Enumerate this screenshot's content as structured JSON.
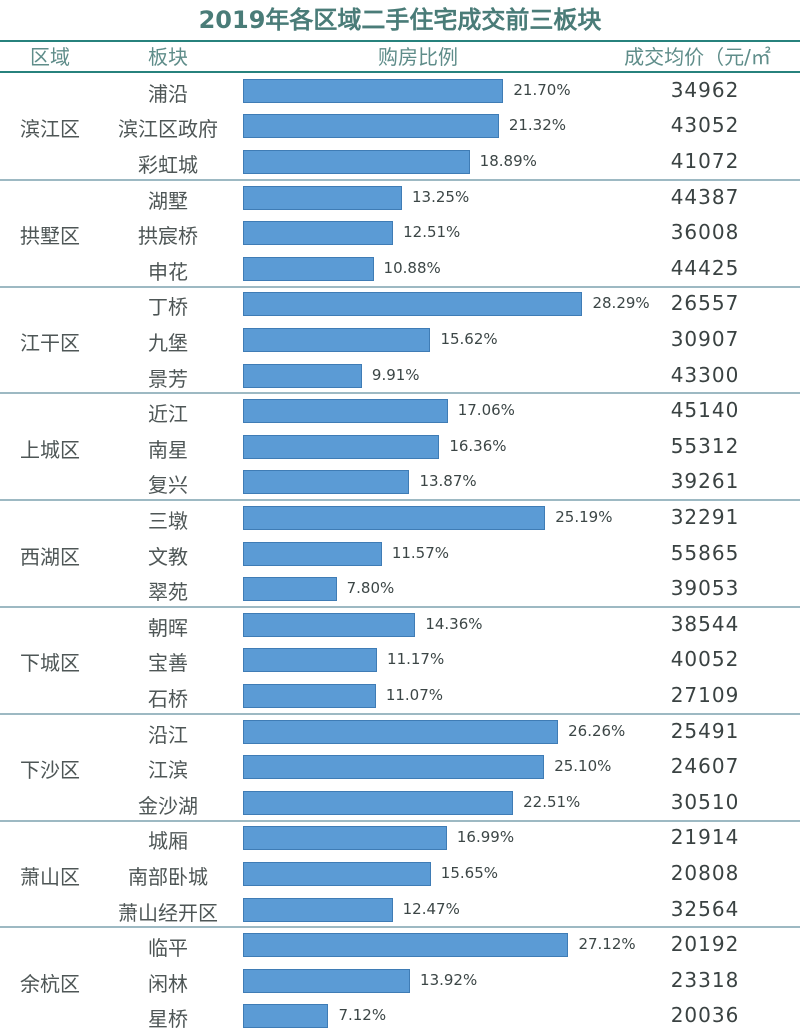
{
  "title": "2019年各区域二手住宅成交前三板块",
  "headers": {
    "district": "区域",
    "block": "板块",
    "ratio": "购房比例",
    "price": "成交均价（元/㎡"
  },
  "chart_data": {
    "type": "bar",
    "title": "2019年各区域二手住宅成交前三板块",
    "xlabel": "购房比例",
    "ylabel": "",
    "xlim": [
      0,
      32
    ],
    "groups": [
      {
        "district": "滨江区",
        "rows": [
          {
            "block": "浦沿",
            "ratio": 21.7,
            "label": "21.70%",
            "price": "34962"
          },
          {
            "block": "滨江区政府",
            "ratio": 21.32,
            "label": "21.32%",
            "price": "43052"
          },
          {
            "block": "彩虹城",
            "ratio": 18.89,
            "label": "18.89%",
            "price": "41072"
          }
        ]
      },
      {
        "district": "拱墅区",
        "rows": [
          {
            "block": "湖墅",
            "ratio": 13.25,
            "label": "13.25%",
            "price": "44387"
          },
          {
            "block": "拱宸桥",
            "ratio": 12.51,
            "label": "12.51%",
            "price": "36008"
          },
          {
            "block": "申花",
            "ratio": 10.88,
            "label": "10.88%",
            "price": "44425"
          }
        ]
      },
      {
        "district": "江干区",
        "rows": [
          {
            "block": "丁桥",
            "ratio": 28.29,
            "label": "28.29%",
            "price": "26557"
          },
          {
            "block": "九堡",
            "ratio": 15.62,
            "label": "15.62%",
            "price": "30907"
          },
          {
            "block": "景芳",
            "ratio": 9.91,
            "label": "9.91%",
            "price": "43300"
          }
        ]
      },
      {
        "district": "上城区",
        "rows": [
          {
            "block": "近江",
            "ratio": 17.06,
            "label": "17.06%",
            "price": "45140"
          },
          {
            "block": "南星",
            "ratio": 16.36,
            "label": "16.36%",
            "price": "55312"
          },
          {
            "block": "复兴",
            "ratio": 13.87,
            "label": "13.87%",
            "price": "39261"
          }
        ]
      },
      {
        "district": "西湖区",
        "rows": [
          {
            "block": "三墩",
            "ratio": 25.19,
            "label": "25.19%",
            "price": "32291"
          },
          {
            "block": "文教",
            "ratio": 11.57,
            "label": "11.57%",
            "price": "55865"
          },
          {
            "block": "翠苑",
            "ratio": 7.8,
            "label": "7.80%",
            "price": "39053"
          }
        ]
      },
      {
        "district": "下城区",
        "rows": [
          {
            "block": "朝晖",
            "ratio": 14.36,
            "label": "14.36%",
            "price": "38544"
          },
          {
            "block": "宝善",
            "ratio": 11.17,
            "label": "11.17%",
            "price": "40052"
          },
          {
            "block": "石桥",
            "ratio": 11.07,
            "label": "11.07%",
            "price": "27109"
          }
        ]
      },
      {
        "district": "下沙区",
        "rows": [
          {
            "block": "沿江",
            "ratio": 26.26,
            "label": "26.26%",
            "price": "25491"
          },
          {
            "block": "江滨",
            "ratio": 25.1,
            "label": "25.10%",
            "price": "24607"
          },
          {
            "block": "金沙湖",
            "ratio": 22.51,
            "label": "22.51%",
            "price": "30510"
          }
        ]
      },
      {
        "district": "萧山区",
        "rows": [
          {
            "block": "城厢",
            "ratio": 16.99,
            "label": "16.99%",
            "price": "21914"
          },
          {
            "block": "南部卧城",
            "ratio": 15.65,
            "label": "15.65%",
            "price": "20808"
          },
          {
            "block": "萧山经开区",
            "ratio": 12.47,
            "label": "12.47%",
            "price": "32564"
          }
        ]
      },
      {
        "district": "余杭区",
        "rows": [
          {
            "block": "临平",
            "ratio": 27.12,
            "label": "27.12%",
            "price": "20192"
          },
          {
            "block": "闲林",
            "ratio": 13.92,
            "label": "13.92%",
            "price": "23318"
          },
          {
            "block": "星桥",
            "ratio": 7.12,
            "label": "7.12%",
            "price": "20036"
          }
        ]
      }
    ]
  },
  "colors": {
    "bar": "#5b9bd5",
    "title": "#4a7c78",
    "header_rule": "#27827d",
    "group_rule": "#9db9c3"
  }
}
